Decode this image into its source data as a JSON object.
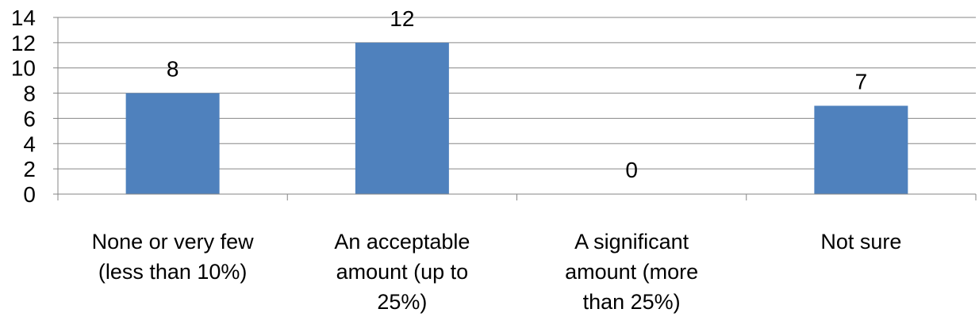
{
  "chart_data": {
    "type": "bar",
    "categories": [
      [
        "None or very few",
        "(less than 10%)"
      ],
      [
        "An acceptable",
        "amount  (up to",
        "25%)"
      ],
      [
        "A significant",
        "amount  (more",
        "than 25%)"
      ],
      [
        "Not sure"
      ]
    ],
    "values": [
      8,
      12,
      0,
      7
    ],
    "data_labels": [
      "8",
      "12",
      "0",
      "7"
    ],
    "ylim": [
      0,
      14
    ],
    "yticks": [
      "0",
      "2",
      "4",
      "6",
      "8",
      "10",
      "12",
      "14"
    ],
    "grid": true,
    "legend": "none",
    "colors": {
      "bar": "#4f81bd",
      "grid": "#868686",
      "axis": "#868686"
    }
  }
}
